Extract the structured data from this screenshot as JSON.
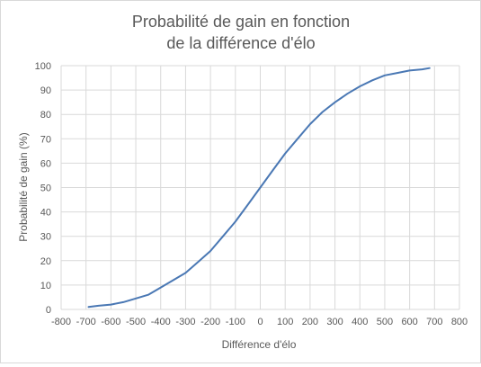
{
  "chart_data": {
    "type": "line",
    "title_lines": [
      "Probabilité de gain en fonction",
      "de la différence d'élo"
    ],
    "xlabel": "Différence d'élo",
    "ylabel": "Probabilité de gain (%)",
    "xlim": [
      -800,
      800
    ],
    "ylim": [
      0,
      100
    ],
    "x_ticks": [
      -800,
      -700,
      -600,
      -500,
      -400,
      -300,
      -200,
      -100,
      0,
      100,
      200,
      300,
      400,
      500,
      600,
      700,
      800
    ],
    "y_ticks": [
      0,
      10,
      20,
      30,
      40,
      50,
      60,
      70,
      80,
      90,
      100
    ],
    "grid": true,
    "legend": "none",
    "colors": {
      "line": "#4a78b4",
      "grid": "#d9d9d9",
      "text": "#595959"
    },
    "series": [
      {
        "x": [
          -690,
          -650,
          -600,
          -550,
          -500,
          -450,
          -400,
          -350,
          -300,
          -250,
          -200,
          -150,
          -100,
          -50,
          0,
          50,
          100,
          150,
          200,
          250,
          300,
          350,
          400,
          450,
          500,
          550,
          600,
          650,
          680
        ],
        "y": [
          1,
          1.5,
          2,
          3,
          4.5,
          6,
          9,
          12,
          15,
          19.5,
          24,
          30,
          36,
          43,
          50,
          57,
          64,
          70,
          76,
          81,
          85,
          88.5,
          91.5,
          94,
          96,
          97,
          98,
          98.5,
          99
        ]
      }
    ]
  }
}
